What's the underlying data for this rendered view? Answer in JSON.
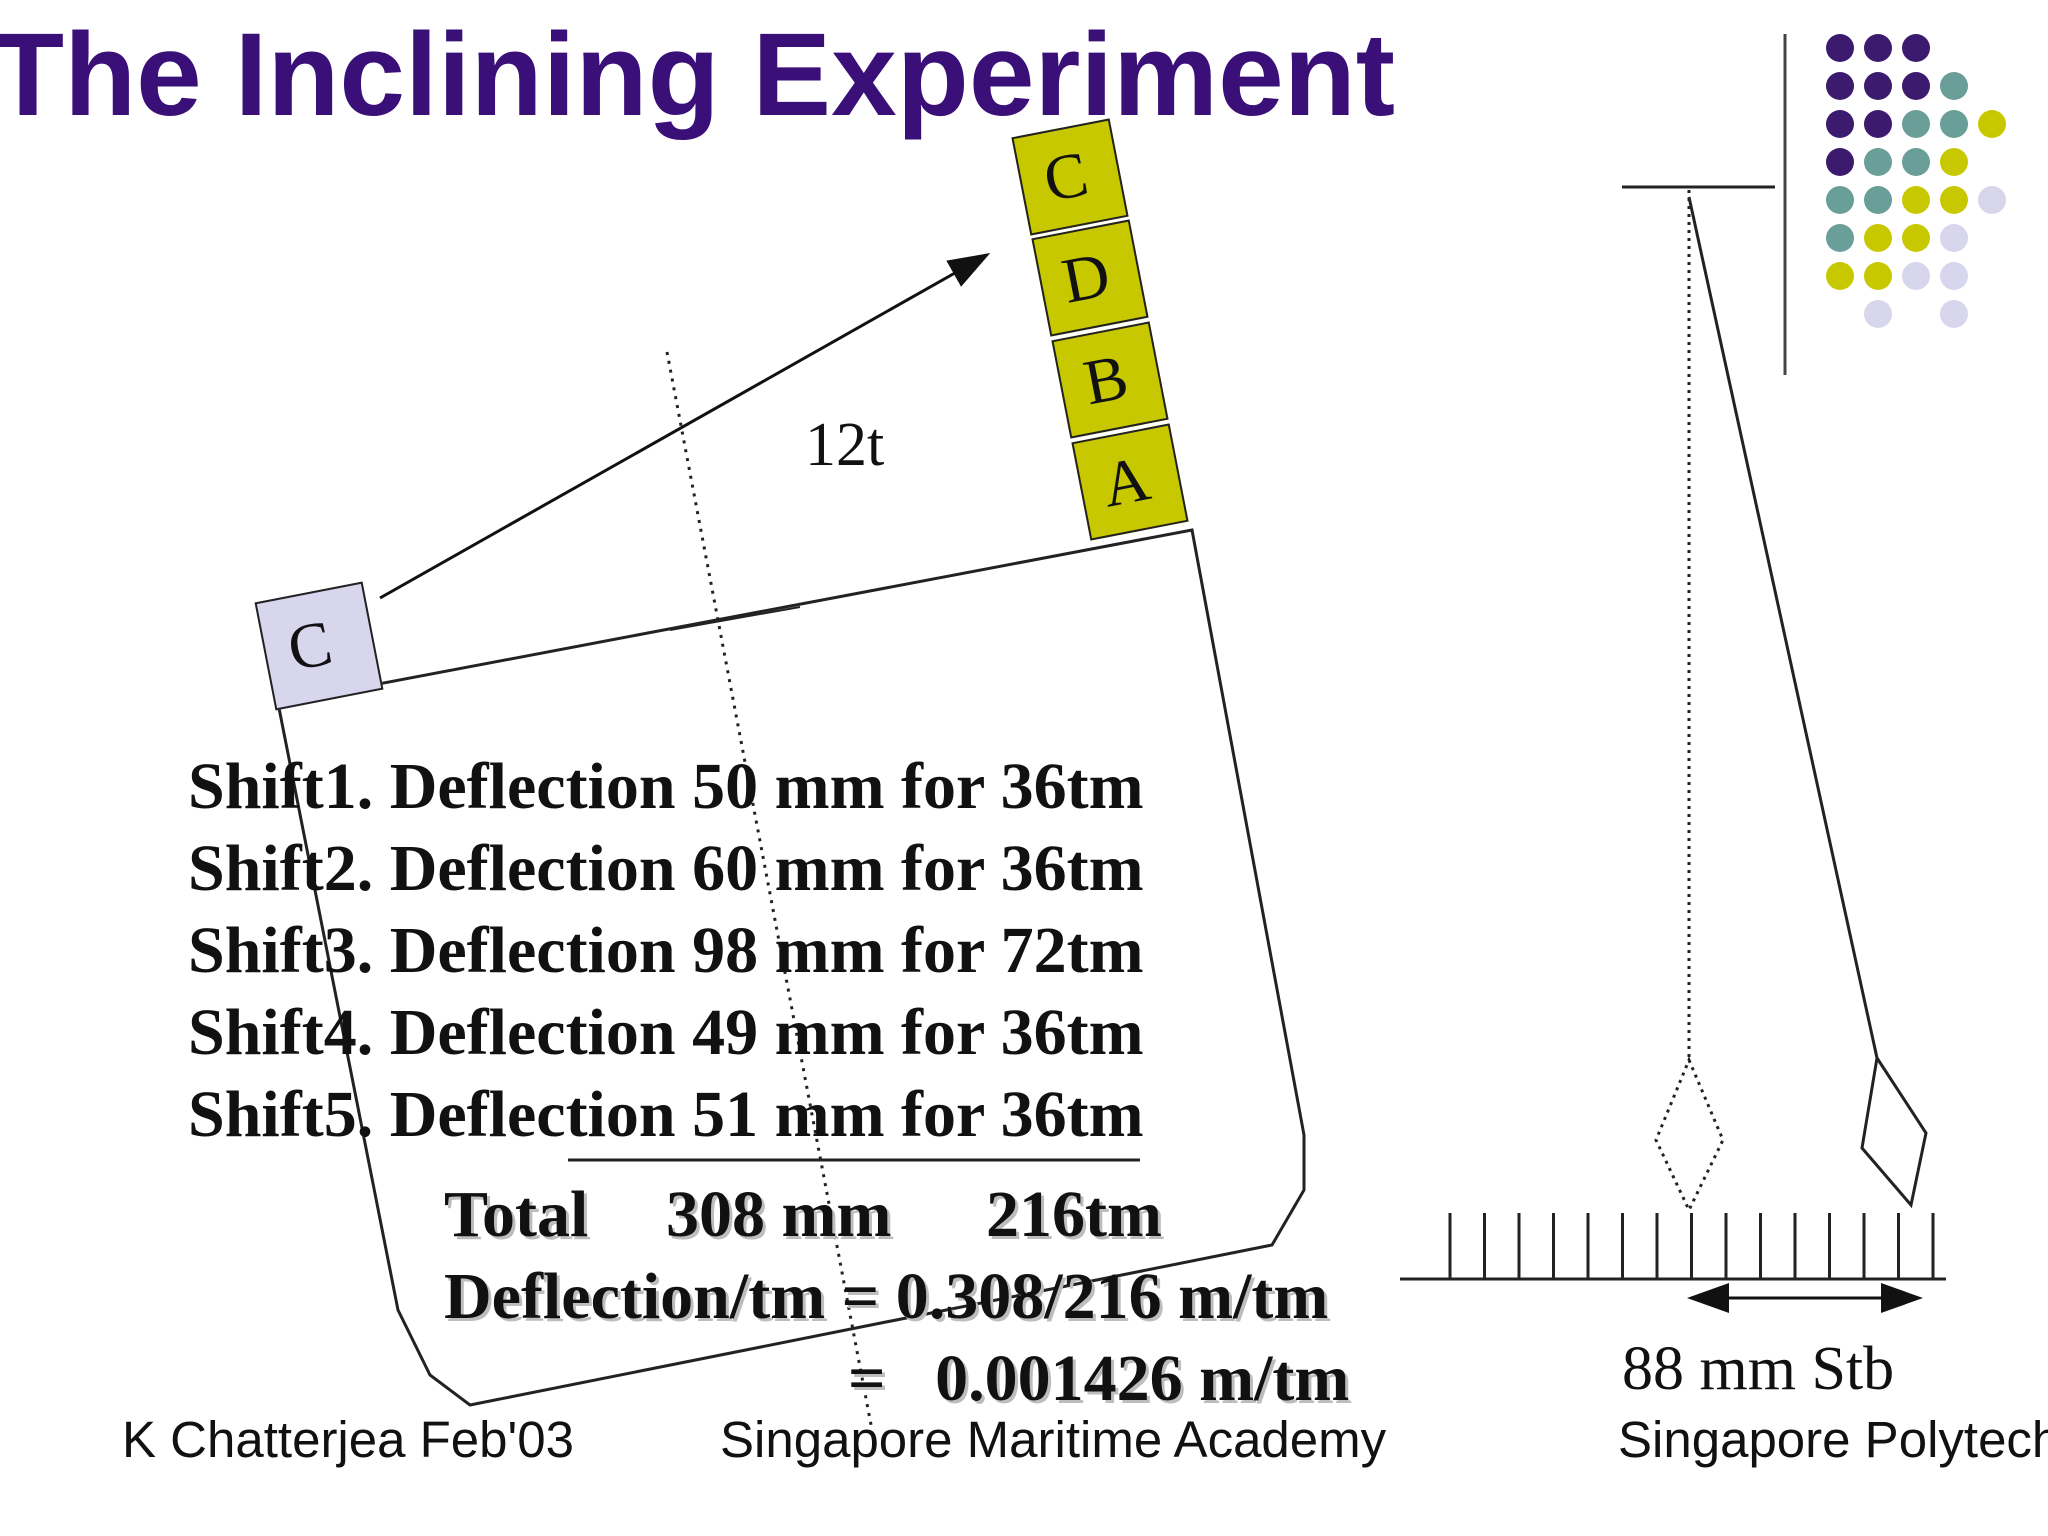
{
  "title": "The Inclining Experiment",
  "weights": {
    "stack": [
      "C",
      "D",
      "B",
      "A"
    ],
    "moved": "C",
    "mass_label": "12t",
    "stack_color": "#c8c800",
    "moved_color": "#d8d6ec"
  },
  "shifts": [
    "Shift1. Deflection 50 mm for 36tm",
    "Shift2. Deflection 60 mm for 36tm",
    "Shift3. Deflection 98 mm for 72tm",
    "Shift4. Deflection 49 mm for 36tm",
    "Shift5. Deflection 51 mm for 36tm"
  ],
  "totals": {
    "label": "Total",
    "deflection": "308 mm",
    "moment": "216tm",
    "ratio": "Deflection/tm = 0.308/216 m/tm",
    "result": "=   0.001426 m/tm"
  },
  "pendulum": {
    "reading": "88 mm Stb"
  },
  "footer": {
    "author": "K Chatterjea Feb'03",
    "center": "Singapore Maritime Academy",
    "right": "Singapore Polytech"
  },
  "decoration": {
    "colors": {
      "purple": "#3c1a6e",
      "teal": "#6a9e98",
      "yellow": "#c8c800",
      "lavender": "#d8d6ec"
    }
  }
}
